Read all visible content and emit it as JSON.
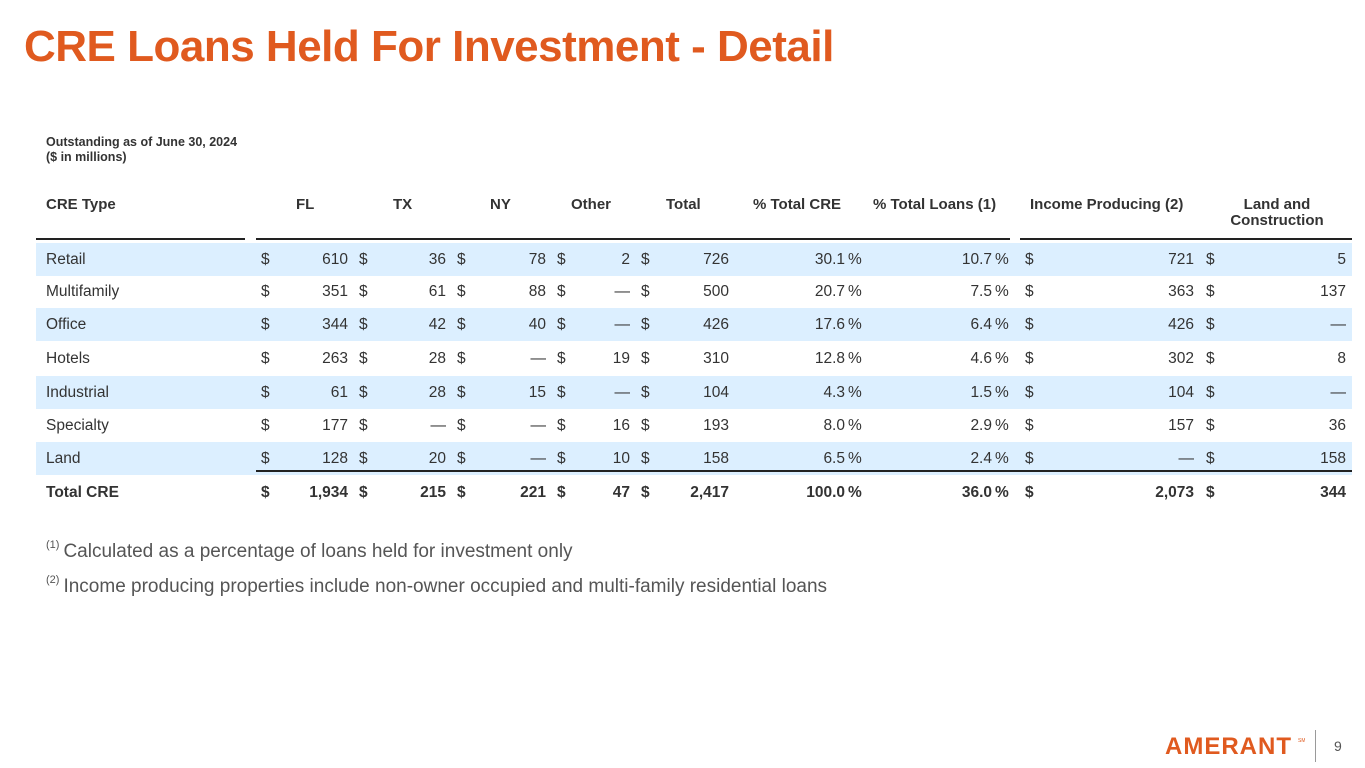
{
  "title": "CRE Loans Held For Investment - Detail",
  "meta": {
    "line1": "Outstanding as of June 30, 2024",
    "line2": "($ in millions)"
  },
  "headers": {
    "type": "CRE Type",
    "fl": "FL",
    "tx": "TX",
    "ny": "NY",
    "other": "Other",
    "total": "Total",
    "pct_cre": "% Total CRE",
    "pct_loans": "% Total Loans (1)",
    "income": "Income Producing (2)",
    "land_line1": "Land and",
    "land_line2": "Construction"
  },
  "rows": [
    {
      "type": "Retail",
      "fl": "610",
      "tx": "36",
      "ny": "78",
      "other": "2",
      "total": "726",
      "pct_cre": "30.1",
      "pct_loans": "10.7",
      "income": "721",
      "land": "5"
    },
    {
      "type": "Multifamily",
      "fl": "351",
      "tx": "61",
      "ny": "88",
      "other": "—",
      "total": "500",
      "pct_cre": "20.7",
      "pct_loans": "7.5",
      "income": "363",
      "land": "137"
    },
    {
      "type": "Office",
      "fl": "344",
      "tx": "42",
      "ny": "40",
      "other": "—",
      "total": "426",
      "pct_cre": "17.6",
      "pct_loans": "6.4",
      "income": "426",
      "land": "—"
    },
    {
      "type": "Hotels",
      "fl": "263",
      "tx": "28",
      "ny": "—",
      "other": "19",
      "total": "310",
      "pct_cre": "12.8",
      "pct_loans": "4.6",
      "income": "302",
      "land": "8"
    },
    {
      "type": "Industrial",
      "fl": "61",
      "tx": "28",
      "ny": "15",
      "other": "—",
      "total": "104",
      "pct_cre": "4.3",
      "pct_loans": "1.5",
      "income": "104",
      "land": "—"
    },
    {
      "type": "Specialty",
      "fl": "177",
      "tx": "—",
      "ny": "—",
      "other": "16",
      "total": "193",
      "pct_cre": "8.0",
      "pct_loans": "2.9",
      "income": "157",
      "land": "36"
    },
    {
      "type": "Land",
      "fl": "128",
      "tx": "20",
      "ny": "—",
      "other": "10",
      "total": "158",
      "pct_cre": "6.5",
      "pct_loans": "2.4",
      "income": "—",
      "land": "158"
    }
  ],
  "total_row": {
    "type": "Total CRE",
    "fl": "1,934",
    "tx": "215",
    "ny": "221",
    "other": "47",
    "total": "2,417",
    "pct_cre": "100.0",
    "pct_loans": "36.0",
    "income": "2,073",
    "land": "344"
  },
  "symbols": {
    "currency": "$",
    "percent": "%"
  },
  "footnotes": [
    {
      "mark": "(1)",
      "text": "Calculated as a percentage of loans held for investment only"
    },
    {
      "mark": "(2)",
      "text": "Income producing properties include non-owner occupied and multi-family residential loans"
    }
  ],
  "logo_text": "AMERANT",
  "page_number": "9",
  "colors": {
    "accent": "#e05a1f",
    "row_shade": "#dcefff",
    "text": "#333333"
  }
}
